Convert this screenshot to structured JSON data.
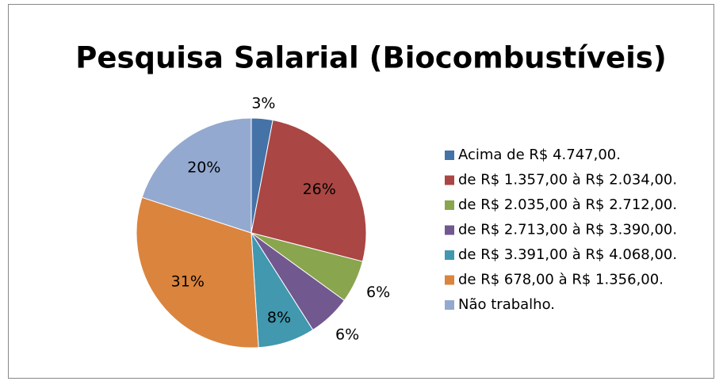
{
  "chart_data": {
    "type": "pie",
    "title": "Pesquisa Salarial (Biocombustíveis)",
    "categories": [
      "Acima de R$ 4.747,00.",
      "de R$ 1.357,00 à R$ 2.034,00.",
      "de R$ 2.035,00 à R$ 2.712,00.",
      "de R$ 2.713,00 à R$ 3.390,00.",
      "de R$ 3.391,00 à R$ 4.068,00.",
      "de R$ 678,00 à R$ 1.356,00.",
      "Não trabalho."
    ],
    "values": [
      3,
      26,
      6,
      6,
      8,
      31,
      20
    ],
    "value_labels": [
      "3%",
      "26%",
      "6%",
      "6%",
      "8%",
      "31%",
      "20%"
    ],
    "colors": [
      "#4572a7",
      "#aa4643",
      "#89a54e",
      "#71588f",
      "#4198af",
      "#db843d",
      "#93a9cf"
    ],
    "legend": "right"
  }
}
